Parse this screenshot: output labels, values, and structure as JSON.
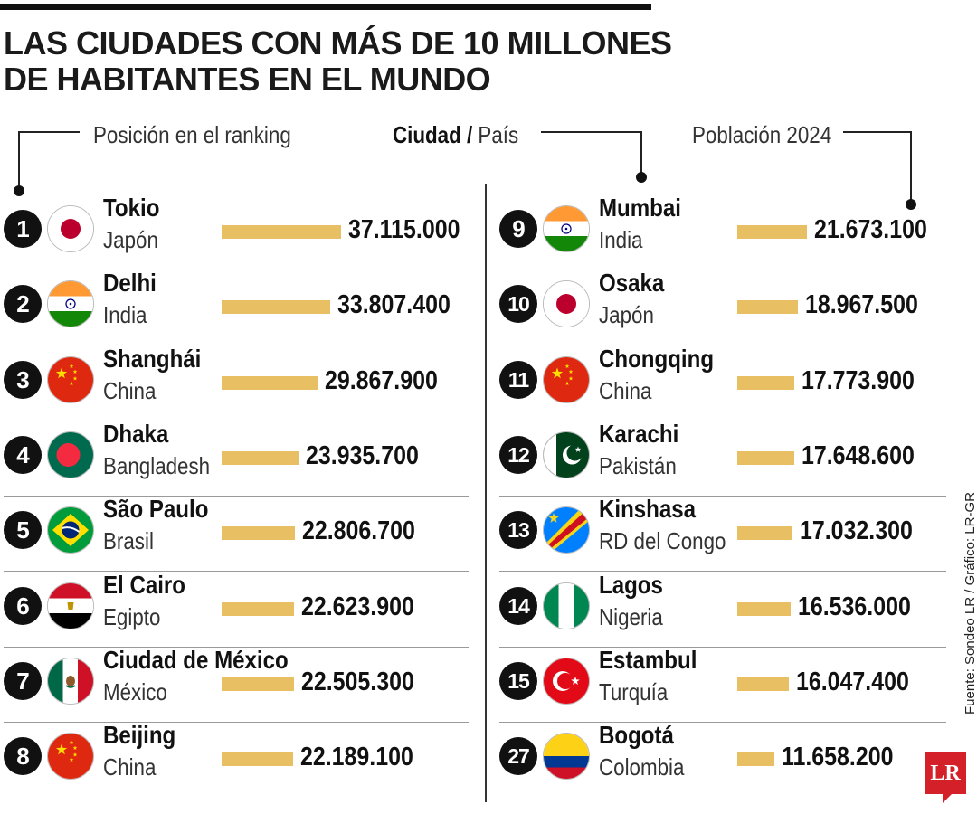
{
  "title": "LAS CIUDADES CON MÁS DE 10 MILLONES DE HABITANTES EN EL MUNDO",
  "labels": {
    "ranking": "Posición en el ranking",
    "city": "Ciudad",
    "slash": " / ",
    "country": "País",
    "population": "Población 2024"
  },
  "source": "Fuente: Sondeo LR / Gráfico: LR-GR",
  "logo": "LR",
  "colors": {
    "bar": "#e8c063",
    "logo": "#d42028"
  },
  "chart_data": {
    "type": "bar",
    "title": "LAS CIUDADES CON MÁS DE 10 MILLONES DE HABITANTES EN EL MUNDO",
    "xlabel": "Ciudad / País",
    "ylabel": "Población 2024",
    "value_max": 37115000,
    "rows": [
      {
        "rank": "1",
        "city": "Tokio",
        "country": "Japón",
        "flag": "japan-flag-icon",
        "value": 37115000,
        "label": "37.115.000"
      },
      {
        "rank": "2",
        "city": "Delhi",
        "country": "India",
        "flag": "india-flag-icon",
        "value": 33807400,
        "label": "33.807.400"
      },
      {
        "rank": "3",
        "city": "Shanghái",
        "country": "China",
        "flag": "china-flag-icon",
        "value": 29867900,
        "label": "29.867.900"
      },
      {
        "rank": "4",
        "city": "Dhaka",
        "country": "Bangladesh",
        "flag": "bangladesh-flag-icon",
        "value": 23935700,
        "label": "23.935.700"
      },
      {
        "rank": "5",
        "city": "São Paulo",
        "country": "Brasil",
        "flag": "brazil-flag-icon",
        "value": 22806700,
        "label": "22.806.700"
      },
      {
        "rank": "6",
        "city": "El Cairo",
        "country": "Egipto",
        "flag": "egypt-flag-icon",
        "value": 22623900,
        "label": "22.623.900"
      },
      {
        "rank": "7",
        "city": "Ciudad de México",
        "country": "México",
        "flag": "mexico-flag-icon",
        "value": 22505300,
        "label": "22.505.300"
      },
      {
        "rank": "8",
        "city": "Beijing",
        "country": "China",
        "flag": "china-flag-icon",
        "value": 22189100,
        "label": "22.189.100"
      },
      {
        "rank": "9",
        "city": "Mumbai",
        "country": "India",
        "flag": "india-flag-icon",
        "value": 21673100,
        "label": "21.673.100"
      },
      {
        "rank": "10",
        "city": "Osaka",
        "country": "Japón",
        "flag": "japan-flag-icon",
        "value": 18967500,
        "label": "18.967.500"
      },
      {
        "rank": "11",
        "city": "Chongqing",
        "country": "China",
        "flag": "china-flag-icon",
        "value": 17773900,
        "label": "17.773.900"
      },
      {
        "rank": "12",
        "city": "Karachi",
        "country": "Pakistán",
        "flag": "pakistan-flag-icon",
        "value": 17648600,
        "label": "17.648.600"
      },
      {
        "rank": "13",
        "city": "Kinshasa",
        "country": "RD del Congo",
        "flag": "drc-flag-icon",
        "value": 17032300,
        "label": "17.032.300"
      },
      {
        "rank": "14",
        "city": "Lagos",
        "country": "Nigeria",
        "flag": "nigeria-flag-icon",
        "value": 16536000,
        "label": "16.536.000"
      },
      {
        "rank": "15",
        "city": "Estambul",
        "country": "Turquía",
        "flag": "turkey-flag-icon",
        "value": 16047400,
        "label": "16.047.400"
      },
      {
        "rank": "27",
        "city": "Bogotá",
        "country": "Colombia",
        "flag": "colombia-flag-icon",
        "value": 11658200,
        "label": "11.658.200"
      }
    ]
  }
}
